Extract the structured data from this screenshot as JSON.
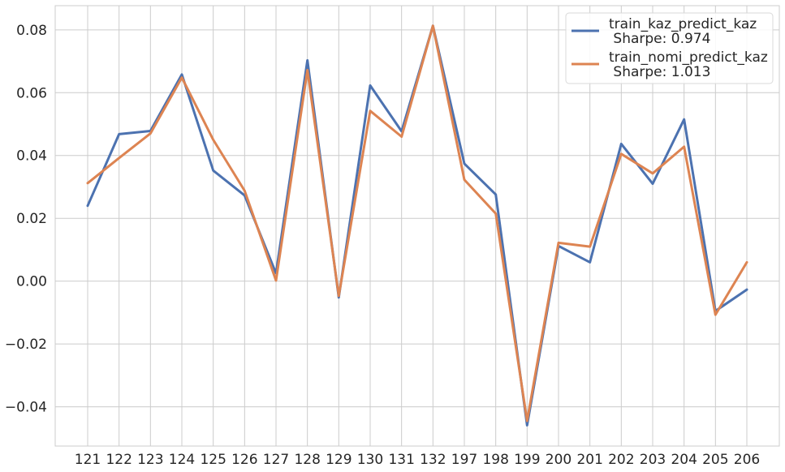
{
  "chart_data": {
    "type": "line",
    "categories": [
      "121",
      "122",
      "123",
      "124",
      "125",
      "126",
      "127",
      "128",
      "129",
      "130",
      "131",
      "132",
      "197",
      "198",
      "199",
      "200",
      "201",
      "202",
      "203",
      "204",
      "205",
      "206"
    ],
    "series": [
      {
        "name": "train_kaz_predict_kaz",
        "subtitle": " Sharpe: 0.974",
        "color": "#4c72b0",
        "values": [
          0.024,
          0.0468,
          0.0478,
          0.0658,
          0.0352,
          0.0273,
          0.0025,
          0.0703,
          -0.0052,
          0.0623,
          0.0477,
          0.0813,
          0.0374,
          0.0276,
          -0.0459,
          0.0112,
          0.006,
          0.0437,
          0.031,
          0.0515,
          -0.0095,
          -0.0027
        ]
      },
      {
        "name": "train_nomi_predict_kaz",
        "subtitle": " Sharpe: 1.013",
        "color": "#dd8452",
        "values": [
          0.0312,
          0.0392,
          0.047,
          0.0648,
          0.045,
          0.0288,
          0.0002,
          0.0672,
          -0.0047,
          0.0542,
          0.046,
          0.0813,
          0.0323,
          0.0215,
          -0.0445,
          0.0122,
          0.011,
          0.0405,
          0.0343,
          0.0428,
          -0.0107,
          0.006
        ]
      }
    ],
    "yticks": [
      "0.08",
      "0.06",
      "0.04",
      "0.02",
      "0.00",
      "−0.02",
      "−0.04"
    ],
    "ytick_values": [
      0.08,
      0.06,
      0.04,
      0.02,
      0.0,
      -0.02,
      -0.04
    ],
    "ylim": [
      -0.0525,
      0.0877
    ],
    "grid": true,
    "legend_position": "top-right",
    "xlabel": "",
    "ylabel": "",
    "title": ""
  }
}
